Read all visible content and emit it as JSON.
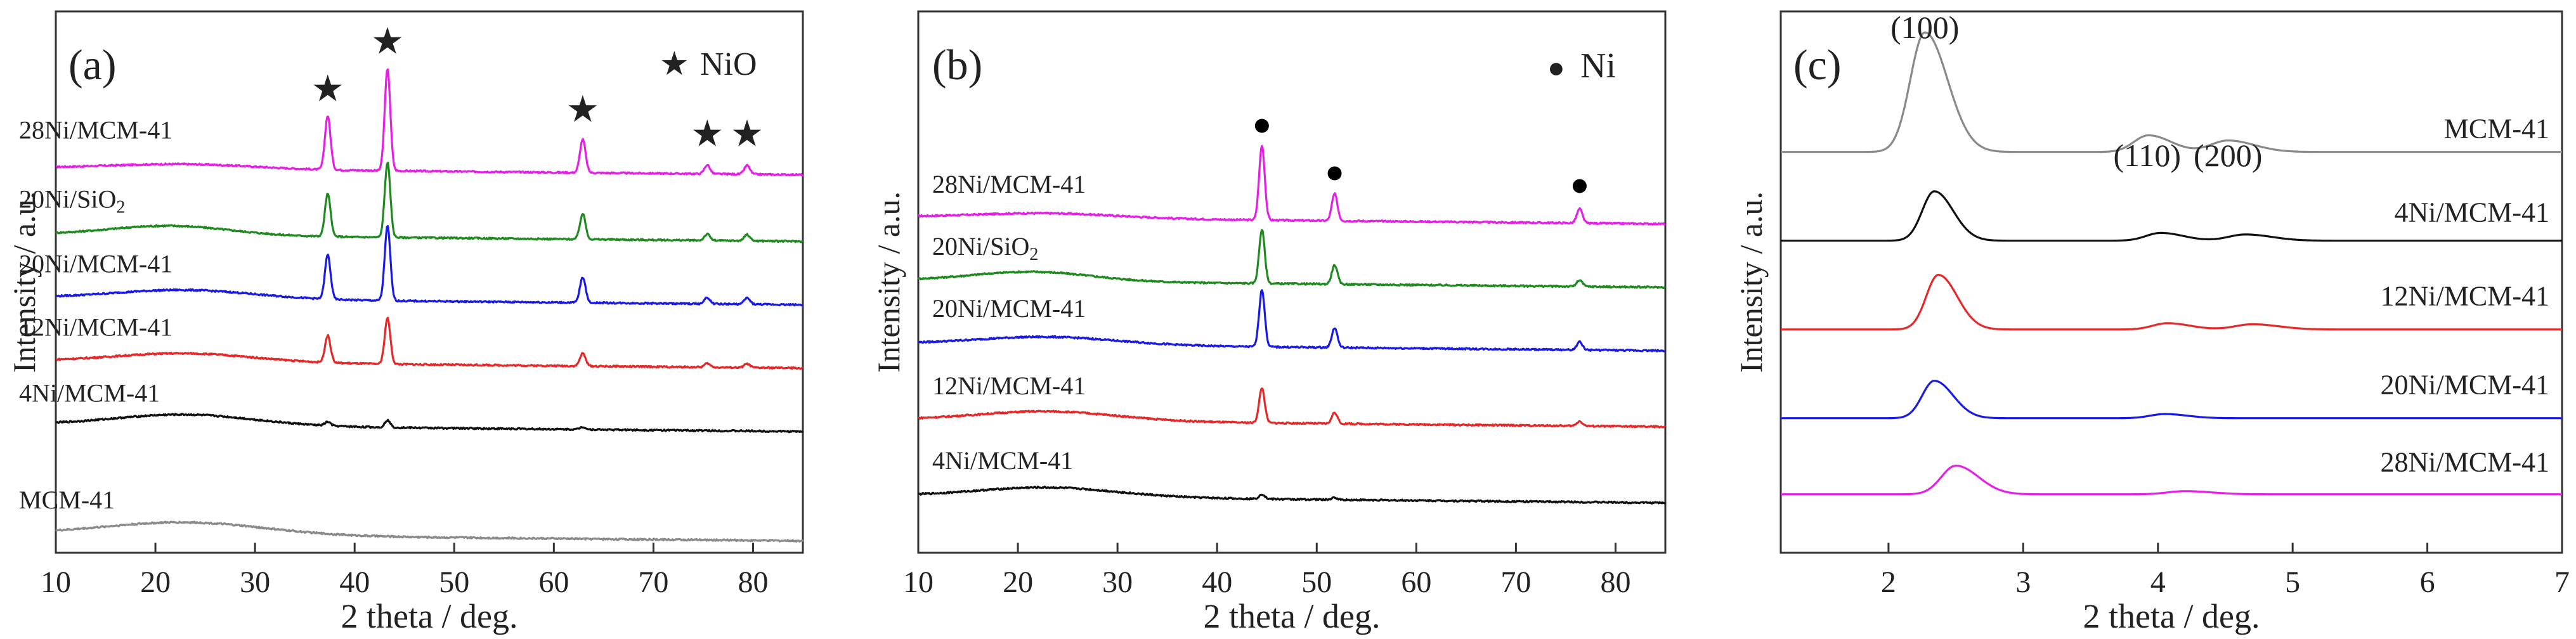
{
  "chart_data": [
    {
      "panel_label": "(a)",
      "type": "line",
      "xlabel": "2 theta / deg.",
      "ylabel": "Intensity / a.u.",
      "xlim": [
        10,
        85
      ],
      "xticks": [
        10,
        20,
        30,
        40,
        50,
        60,
        70,
        80
      ],
      "legend": {
        "symbol": "★",
        "label": "NiO"
      },
      "peak_markers": [
        37.3,
        43.3,
        62.9,
        75.4,
        79.4
      ],
      "series": [
        {
          "name": "28Ni/MCM-41",
          "color": "#e61ee6",
          "baseline": 0.55,
          "hump": {
            "center": 23,
            "height": 0.15,
            "width": 7
          },
          "peaks": [
            [
              37.3,
              1.7
            ],
            [
              43.3,
              3.2
            ],
            [
              62.9,
              1.05
            ],
            [
              75.4,
              0.28
            ],
            [
              79.4,
              0.28
            ]
          ]
        },
        {
          "name": "20Ni/SiO2",
          "color": "#1f8a1f",
          "baseline": 0.45,
          "hump": {
            "center": 21.5,
            "height": 0.3,
            "width": 6
          },
          "peaks": [
            [
              37.3,
              1.35
            ],
            [
              43.3,
              2.35
            ],
            [
              62.9,
              0.8
            ],
            [
              75.4,
              0.2
            ],
            [
              79.4,
              0.2
            ]
          ]
        },
        {
          "name": "20Ni/MCM-41",
          "color": "#1a1ae6",
          "baseline": 0.45,
          "hump": {
            "center": 23,
            "height": 0.28,
            "width": 7
          },
          "peaks": [
            [
              37.3,
              1.4
            ],
            [
              43.3,
              2.35
            ],
            [
              62.9,
              0.8
            ],
            [
              75.4,
              0.2
            ],
            [
              79.4,
              0.2
            ]
          ]
        },
        {
          "name": "12Ni/MCM-41",
          "color": "#e62828",
          "baseline": 0.45,
          "hump": {
            "center": 23,
            "height": 0.28,
            "width": 7
          },
          "peaks": [
            [
              37.3,
              0.85
            ],
            [
              43.3,
              1.45
            ],
            [
              62.9,
              0.4
            ],
            [
              75.4,
              0.12
            ],
            [
              79.4,
              0.12
            ]
          ]
        },
        {
          "name": "4Ni/MCM-41",
          "color": "#111111",
          "baseline": 0.45,
          "hump": {
            "center": 23,
            "height": 0.35,
            "width": 7
          },
          "peaks": [
            [
              37.3,
              0.12
            ],
            [
              43.3,
              0.22
            ],
            [
              62.9,
              0.08
            ]
          ]
        },
        {
          "name": "MCM-41",
          "color": "#8a8a8a",
          "baseline": 0.2,
          "hump": {
            "center": 23,
            "height": 0.4,
            "width": 8
          },
          "peaks": []
        }
      ]
    },
    {
      "panel_label": "(b)",
      "type": "line",
      "xlabel": "2 theta / deg.",
      "ylabel": "Intensity / a.u.",
      "xlim": [
        10,
        85
      ],
      "xticks": [
        10,
        20,
        30,
        40,
        50,
        60,
        70,
        80
      ],
      "legend": {
        "symbol": "●",
        "label": "Ni"
      },
      "peak_markers": [
        44.5,
        51.8,
        76.4
      ],
      "series": [
        {
          "name": "28Ni/MCM-41",
          "color": "#e61ee6",
          "baseline": 0.2,
          "hump": {
            "center": 23,
            "height": 0.15,
            "width": 7
          },
          "peaks": [
            [
              44.5,
              2.35
            ],
            [
              51.8,
              0.85
            ],
            [
              76.4,
              0.45
            ]
          ]
        },
        {
          "name": "20Ni/SiO2",
          "color": "#1f8a1f",
          "baseline": 0.2,
          "hump": {
            "center": 21.5,
            "height": 0.3,
            "width": 6
          },
          "peaks": [
            [
              44.5,
              1.7
            ],
            [
              51.8,
              0.6
            ],
            [
              76.4,
              0.2
            ]
          ]
        },
        {
          "name": "20Ni/MCM-41",
          "color": "#1a1ae6",
          "baseline": 0.2,
          "hump": {
            "center": 23,
            "height": 0.25,
            "width": 7
          },
          "peaks": [
            [
              44.5,
              1.8
            ],
            [
              51.8,
              0.62
            ],
            [
              76.4,
              0.25
            ]
          ]
        },
        {
          "name": "12Ni/MCM-41",
          "color": "#e62828",
          "baseline": 0.2,
          "hump": {
            "center": 23,
            "height": 0.3,
            "width": 7
          },
          "peaks": [
            [
              44.5,
              1.1
            ],
            [
              51.8,
              0.35
            ],
            [
              76.4,
              0.15
            ]
          ]
        },
        {
          "name": "4Ni/MCM-41",
          "color": "#111111",
          "baseline": 0.2,
          "hump": {
            "center": 23,
            "height": 0.3,
            "width": 7
          },
          "peaks": [
            [
              44.5,
              0.15
            ],
            [
              51.8,
              0.06
            ]
          ]
        }
      ]
    },
    {
      "panel_label": "(c)",
      "type": "line",
      "xlabel": "2 theta / deg.",
      "ylabel": "Intensity / a.u.",
      "xlim": [
        1.2,
        7
      ],
      "xticks": [
        2,
        3,
        4,
        5,
        6,
        7
      ],
      "peak_labels": [
        {
          "text": "(100)",
          "x": 2.27
        },
        {
          "text": "(110)",
          "x": 3.92
        },
        {
          "text": "(200)",
          "x": 4.52
        }
      ],
      "series": [
        {
          "name": "MCM-41",
          "color": "#8a8a8a",
          "baseline": 0.15,
          "peaks": [
            [
              2.27,
              2.3,
              0.12
            ],
            [
              3.93,
              0.32,
              0.12
            ],
            [
              4.52,
              0.22,
              0.14
            ]
          ]
        },
        {
          "name": "4Ni/MCM-41",
          "color": "#111111",
          "baseline": 0.15,
          "peaks": [
            [
              2.34,
              0.95,
              0.1
            ],
            [
              4.02,
              0.15,
              0.12
            ],
            [
              4.65,
              0.12,
              0.14
            ]
          ]
        },
        {
          "name": "12Ni/MCM-41",
          "color": "#e62828",
          "baseline": 0.15,
          "peaks": [
            [
              2.37,
              1.05,
              0.1
            ],
            [
              4.07,
              0.12,
              0.12
            ],
            [
              4.7,
              0.1,
              0.14
            ]
          ]
        },
        {
          "name": "20Ni/MCM-41",
          "color": "#1a1ae6",
          "baseline": 0.15,
          "peaks": [
            [
              2.34,
              0.72,
              0.1
            ],
            [
              4.05,
              0.08,
              0.12
            ]
          ]
        },
        {
          "name": "28Ni/MCM-41",
          "color": "#e61ee6",
          "baseline": 0.15,
          "peaks": [
            [
              2.5,
              0.55,
              0.12
            ],
            [
              4.2,
              0.06,
              0.14
            ]
          ]
        }
      ]
    }
  ]
}
